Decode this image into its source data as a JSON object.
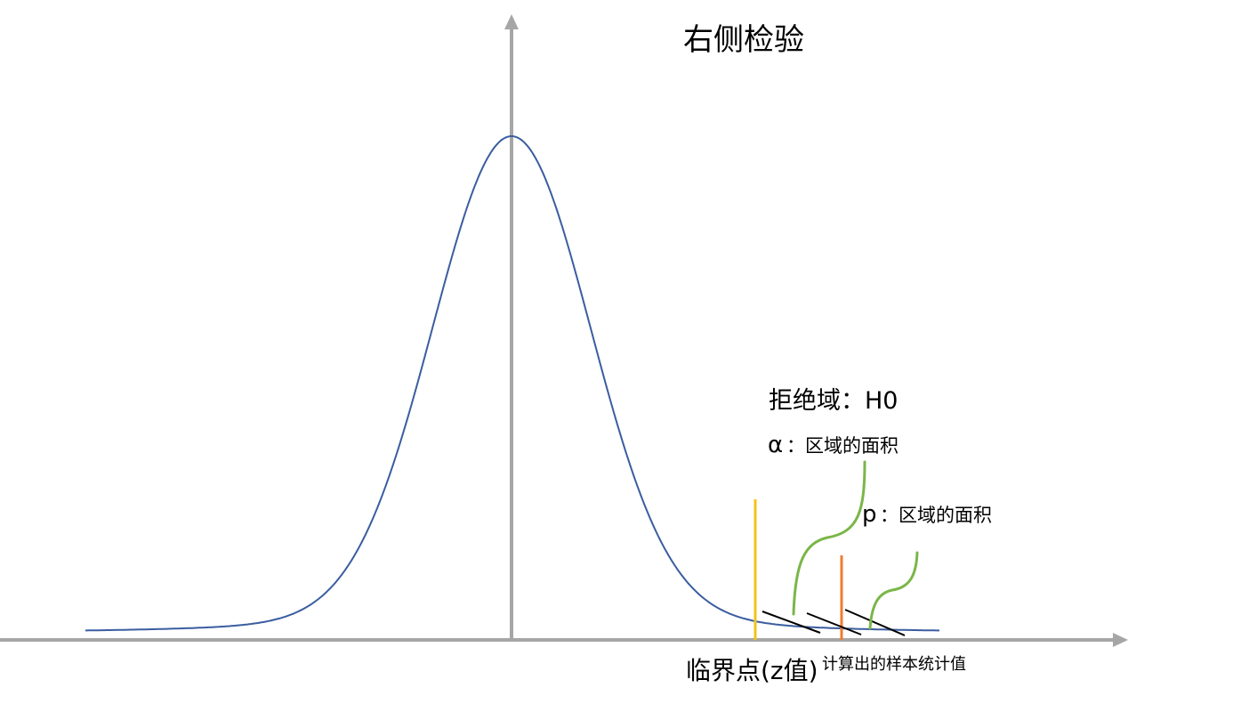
{
  "title": "右侧检验",
  "annotations": {
    "rejection_region": "拒绝域：H0",
    "alpha_symbol": "α",
    "alpha_desc": "：区域的面积",
    "p_symbol": "p",
    "p_desc": "：区域的面积",
    "critical_point": "临界点(z值)",
    "statistic": "计算出的样本统计值"
  },
  "colors": {
    "axis": "#a6a6a6",
    "curve": "#3a5da0",
    "critical_line": "#f2c31a",
    "statistic_line": "#ed7d31",
    "bracket": "#7ab648",
    "hatch": "#000000",
    "text": "#000000"
  }
}
